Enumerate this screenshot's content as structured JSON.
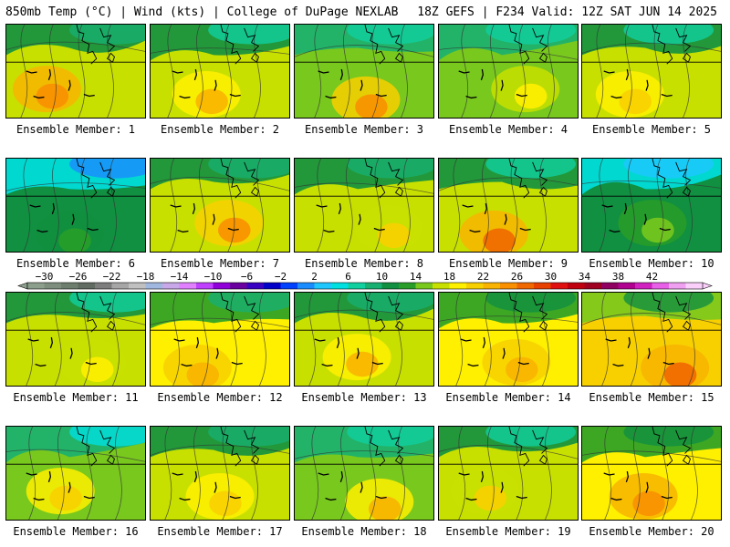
{
  "header": {
    "left_title": "850mb Temp (°C) | Wind (kts) | College of DuPage NEXLAB",
    "right_title": "18Z GEFS | F234 Valid: 12Z SAT JUN 14 2025"
  },
  "panels": [
    {
      "label": "Ensemble Member: 1",
      "mean_temp_c": 16,
      "warm_core_c": 24
    },
    {
      "label": "Ensemble Member: 2",
      "mean_temp_c": 15,
      "warm_core_c": 21
    },
    {
      "label": "Ensemble Member: 3",
      "mean_temp_c": 14,
      "warm_core_c": 23
    },
    {
      "label": "Ensemble Member: 4",
      "mean_temp_c": 14,
      "warm_core_c": 18
    },
    {
      "label": "Ensemble Member: 5",
      "mean_temp_c": 15,
      "warm_core_c": 20
    },
    {
      "label": "Ensemble Member: 6",
      "mean_temp_c": 9,
      "warm_core_c": 12
    },
    {
      "label": "Ensemble Member: 7",
      "mean_temp_c": 16,
      "warm_core_c": 23
    },
    {
      "label": "Ensemble Member: 8",
      "mean_temp_c": 16,
      "warm_core_c": 19
    },
    {
      "label": "Ensemble Member: 9",
      "mean_temp_c": 15,
      "warm_core_c": 25
    },
    {
      "label": "Ensemble Member: 10",
      "mean_temp_c": 10,
      "warm_core_c": 14
    },
    {
      "label": "Ensemble Member: 11",
      "mean_temp_c": 15,
      "warm_core_c": 18
    },
    {
      "label": "Ensemble Member: 12",
      "mean_temp_c": 17,
      "warm_core_c": 22
    },
    {
      "label": "Ensemble Member: 13",
      "mean_temp_c": 16,
      "warm_core_c": 21
    },
    {
      "label": "Ensemble Member: 14",
      "mean_temp_c": 18,
      "warm_core_c": 22
    },
    {
      "label": "Ensemble Member: 15",
      "mean_temp_c": 19,
      "warm_core_c": 25
    },
    {
      "label": "Ensemble Member: 16",
      "mean_temp_c": 13,
      "warm_core_c": 20
    },
    {
      "label": "Ensemble Member: 17",
      "mean_temp_c": 16,
      "warm_core_c": 20
    },
    {
      "label": "Ensemble Member: 18",
      "mean_temp_c": 14,
      "warm_core_c": 21
    },
    {
      "label": "Ensemble Member: 19",
      "mean_temp_c": 15,
      "warm_core_c": 19
    },
    {
      "label": "Ensemble Member: 20",
      "mean_temp_c": 18,
      "warm_core_c": 24
    }
  ],
  "colorbar": {
    "ticks": [
      -30,
      -26,
      -22,
      -18,
      -14,
      -10,
      -6,
      -2,
      2,
      6,
      10,
      14,
      18,
      22,
      26,
      30,
      34,
      38,
      42
    ],
    "colors": [
      "#8c9e8c",
      "#7e8e7e",
      "#6e7e6e",
      "#616b61",
      "#7d7d7d",
      "#a6a6a6",
      "#c0c0c0",
      "#a0b8e0",
      "#c8a8e8",
      "#e080ff",
      "#c040ff",
      "#9000d8",
      "#6a00a0",
      "#3800c0",
      "#0000c8",
      "#0040ff",
      "#1a8cff",
      "#1ec8ff",
      "#00e0e0",
      "#10d0a0",
      "#18b070",
      "#109040",
      "#289e28",
      "#78c81e",
      "#c8e000",
      "#fff000",
      "#f8d000",
      "#f8b400",
      "#f89000",
      "#f06800",
      "#e84000",
      "#e01010",
      "#c00010",
      "#a00020",
      "#900060",
      "#b00090",
      "#d020c0",
      "#e860e8",
      "#f0a0f0",
      "#fad0fa"
    ]
  }
}
